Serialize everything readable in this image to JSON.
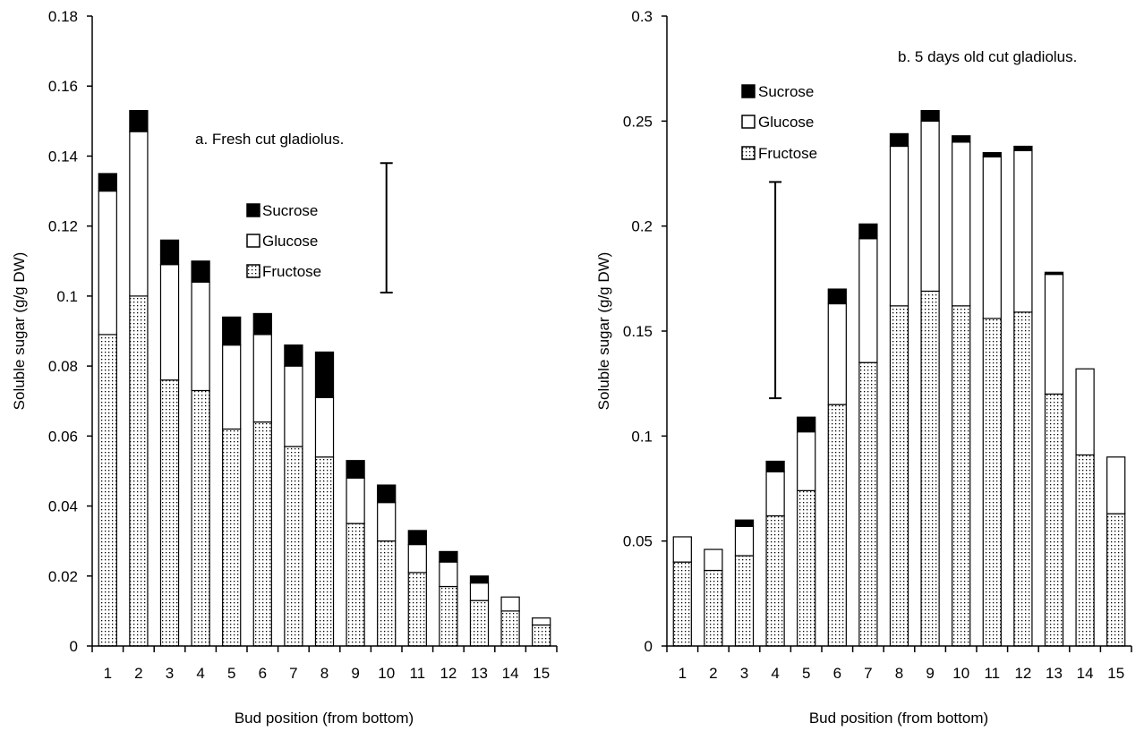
{
  "chart_data": [
    {
      "type": "bar",
      "stacked": true,
      "title": "a. Fresh cut gladiolus.",
      "xlabel": "Bud position (from bottom)",
      "ylabel": "Soluble sugar (g/g DW)",
      "ylim": [
        0,
        0.18
      ],
      "yticks": [
        "0",
        "0.02",
        "0.04",
        "0.06",
        "0.08",
        "0.1",
        "0.12",
        "0.14",
        "0.16",
        "0.18"
      ],
      "categories": [
        "1",
        "2",
        "3",
        "4",
        "5",
        "6",
        "7",
        "8",
        "9",
        "10",
        "11",
        "12",
        "13",
        "14",
        "15"
      ],
      "series": [
        {
          "name": "Fructose",
          "values": [
            0.089,
            0.1,
            0.076,
            0.073,
            0.062,
            0.064,
            0.057,
            0.054,
            0.035,
            0.03,
            0.021,
            0.017,
            0.013,
            0.01,
            0.006
          ]
        },
        {
          "name": "Glucose",
          "values": [
            0.041,
            0.047,
            0.033,
            0.031,
            0.024,
            0.025,
            0.023,
            0.017,
            0.013,
            0.011,
            0.008,
            0.007,
            0.005,
            0.004,
            0.002
          ]
        },
        {
          "name": "Sucrose",
          "values": [
            0.005,
            0.006,
            0.007,
            0.006,
            0.008,
            0.006,
            0.006,
            0.013,
            0.005,
            0.005,
            0.004,
            0.003,
            0.002,
            0.0,
            0.0
          ]
        }
      ],
      "error_bar": {
        "category": "10",
        "low": 0.101,
        "high": 0.138
      },
      "legend_position": "center",
      "legend": [
        "Sucrose",
        "Glucose",
        "Fructose"
      ],
      "grid": false
    },
    {
      "type": "bar",
      "stacked": true,
      "title": "b. 5 days old cut gladiolus.",
      "xlabel": "Bud position (from bottom)",
      "ylabel": "Soluble sugar (g/g DW)",
      "ylim": [
        0,
        0.3
      ],
      "yticks": [
        "0",
        "0.05",
        "0.1",
        "0.15",
        "0.2",
        "0.25",
        "0.3"
      ],
      "categories": [
        "1",
        "2",
        "3",
        "4",
        "5",
        "6",
        "7",
        "8",
        "9",
        "10",
        "11",
        "12",
        "13",
        "14",
        "15"
      ],
      "series": [
        {
          "name": "Fructose",
          "values": [
            0.04,
            0.036,
            0.043,
            0.062,
            0.074,
            0.115,
            0.135,
            0.162,
            0.169,
            0.162,
            0.156,
            0.159,
            0.12,
            0.091,
            0.063
          ]
        },
        {
          "name": "Glucose",
          "values": [
            0.012,
            0.01,
            0.014,
            0.021,
            0.028,
            0.048,
            0.059,
            0.076,
            0.081,
            0.078,
            0.077,
            0.077,
            0.057,
            0.041,
            0.027
          ]
        },
        {
          "name": "Sucrose",
          "values": [
            0.0,
            0.0,
            0.003,
            0.005,
            0.007,
            0.007,
            0.007,
            0.006,
            0.005,
            0.003,
            0.002,
            0.002,
            0.001,
            0.0,
            0.0
          ]
        }
      ],
      "error_bar": {
        "category": "4",
        "low": 0.118,
        "high": 0.221
      },
      "legend_position": "top-left",
      "legend": [
        "Sucrose",
        "Glucose",
        "Fructose"
      ],
      "grid": false
    }
  ],
  "colors": {
    "sucrose": "#000000",
    "glucose": "#ffffff",
    "fructose_dots": "#000000",
    "axis": "#000000"
  }
}
